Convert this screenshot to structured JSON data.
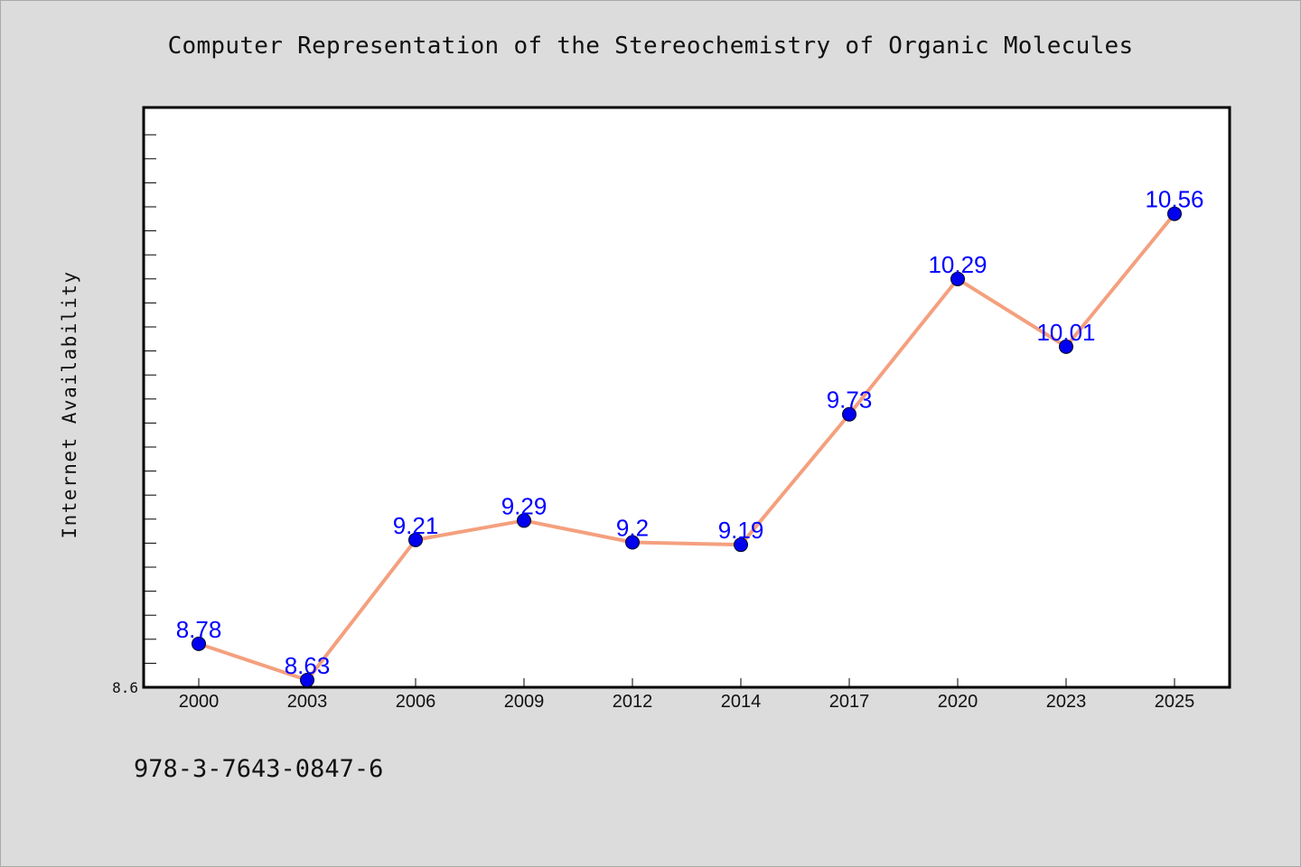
{
  "page": {
    "title": "Computer Representation of the Stereochemistry of Organic Molecules",
    "footer": "978-3-7643-0847-6"
  },
  "colors": {
    "background": "#dcdcdc",
    "plot_background": "#ffffff",
    "line": "#f4a07e",
    "marker": "#0000ee",
    "data_label": "#0000ff"
  },
  "chart_data": {
    "type": "line",
    "title": "Computer Representation of the Stereochemistry of Organic Molecules",
    "xlabel": "",
    "ylabel": "Internet Availability",
    "categories": [
      "2000",
      "2003",
      "2006",
      "2009",
      "2012",
      "2014",
      "2017",
      "2020",
      "2023",
      "2025"
    ],
    "series": [
      {
        "values": [
          8.78,
          8.63,
          9.21,
          9.29,
          9.2,
          9.19,
          9.73,
          10.29,
          10.01,
          10.56
        ],
        "labels": [
          "8.78",
          "8.63",
          "9.21",
          "9.29",
          "9.2",
          "9.19",
          "9.73",
          "10.29",
          "10.01",
          "10.56"
        ]
      }
    ],
    "ylim": [
      8.6,
      11.0
    ],
    "ytick_labels": [
      "8.6"
    ],
    "grid": false,
    "legend": "none"
  }
}
